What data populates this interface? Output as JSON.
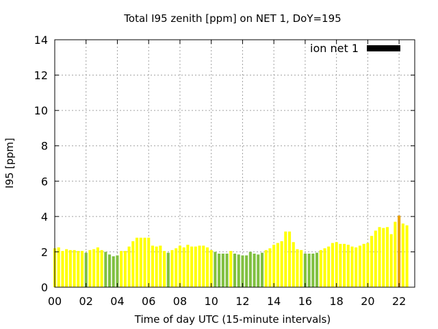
{
  "chart_data": {
    "type": "bar",
    "title": "Total I95 zenith [ppm] on NET 1, DoY=195",
    "xlabel": "Time of day UTC (15-minute intervals)",
    "ylabel": "I95 [ppm]",
    "ylim": [
      0,
      14
    ],
    "xlim": [
      0,
      23
    ],
    "y_ticks": [
      "0",
      "2",
      "4",
      "6",
      "8",
      "10",
      "12",
      "14"
    ],
    "x_ticks": [
      "00",
      "02",
      "04",
      "06",
      "08",
      "10",
      "12",
      "14",
      "16",
      "18",
      "20",
      "22"
    ],
    "grid": true,
    "legend": {
      "label": "ion net 1",
      "position": "top-right",
      "color": "#000000"
    },
    "level_colors": {
      "low": "#80c040",
      "medium": "#ffff00",
      "high": "#e8a000"
    },
    "series": [
      {
        "name": "ion net 1",
        "x": [
          0,
          0.25,
          0.5,
          0.75,
          1,
          1.25,
          1.5,
          1.75,
          2,
          2.25,
          2.5,
          2.75,
          3,
          3.25,
          3.5,
          3.75,
          4,
          4.25,
          4.5,
          4.75,
          5,
          5.25,
          5.5,
          5.75,
          6,
          6.25,
          6.5,
          6.75,
          7,
          7.25,
          7.5,
          7.75,
          8,
          8.25,
          8.5,
          8.75,
          9,
          9.25,
          9.5,
          9.75,
          10,
          10.25,
          10.5,
          10.75,
          11,
          11.25,
          11.5,
          11.75,
          12,
          12.25,
          12.5,
          12.75,
          13,
          13.25,
          13.5,
          13.75,
          14,
          14.25,
          14.5,
          14.75,
          15,
          15.25,
          15.5,
          15.75,
          16,
          16.25,
          16.5,
          16.75,
          17,
          17.25,
          17.5,
          17.75,
          18,
          18.25,
          18.5,
          18.75,
          19,
          19.25,
          19.5,
          19.75,
          20,
          20.25,
          20.5,
          20.75,
          21,
          21.25,
          21.5,
          21.75,
          22,
          22.25,
          22.5
        ],
        "values": [
          2.2,
          2.25,
          2.05,
          2.15,
          2.1,
          2.1,
          2.05,
          2.05,
          1.95,
          2.1,
          2.15,
          2.25,
          2.1,
          2.0,
          1.85,
          1.75,
          1.8,
          2.05,
          2.05,
          2.3,
          2.6,
          2.8,
          2.8,
          2.8,
          2.8,
          2.35,
          2.3,
          2.35,
          2.05,
          1.95,
          2.1,
          2.2,
          2.35,
          2.25,
          2.4,
          2.3,
          2.3,
          2.35,
          2.35,
          2.25,
          2.1,
          2.0,
          1.9,
          1.9,
          1.9,
          2.05,
          1.9,
          1.85,
          1.8,
          1.8,
          2.0,
          1.9,
          1.85,
          1.95,
          2.1,
          2.2,
          2.4,
          2.5,
          2.6,
          3.15,
          3.15,
          2.55,
          2.15,
          2.1,
          1.9,
          1.9,
          1.9,
          1.95,
          2.1,
          2.2,
          2.3,
          2.5,
          2.55,
          2.45,
          2.45,
          2.4,
          2.3,
          2.25,
          2.35,
          2.45,
          2.5,
          2.9,
          3.2,
          3.4,
          3.35,
          3.4,
          3.0,
          3.7,
          4.05,
          3.6,
          3.5
        ],
        "levels": [
          "medium",
          "medium",
          "medium",
          "medium",
          "medium",
          "medium",
          "medium",
          "medium",
          "low",
          "medium",
          "medium",
          "medium",
          "medium",
          "low",
          "low",
          "low",
          "low",
          "medium",
          "medium",
          "medium",
          "medium",
          "medium",
          "medium",
          "medium",
          "medium",
          "medium",
          "medium",
          "medium",
          "medium",
          "low",
          "medium",
          "medium",
          "medium",
          "medium",
          "medium",
          "medium",
          "medium",
          "medium",
          "medium",
          "medium",
          "medium",
          "low",
          "low",
          "low",
          "low",
          "medium",
          "low",
          "low",
          "low",
          "low",
          "low",
          "low",
          "low",
          "low",
          "medium",
          "medium",
          "medium",
          "medium",
          "medium",
          "medium",
          "medium",
          "medium",
          "medium",
          "medium",
          "low",
          "low",
          "low",
          "low",
          "medium",
          "medium",
          "medium",
          "medium",
          "medium",
          "medium",
          "medium",
          "medium",
          "medium",
          "medium",
          "medium",
          "medium",
          "medium",
          "medium",
          "medium",
          "medium",
          "medium",
          "medium",
          "medium",
          "medium",
          "high",
          "medium",
          "medium"
        ]
      }
    ]
  }
}
